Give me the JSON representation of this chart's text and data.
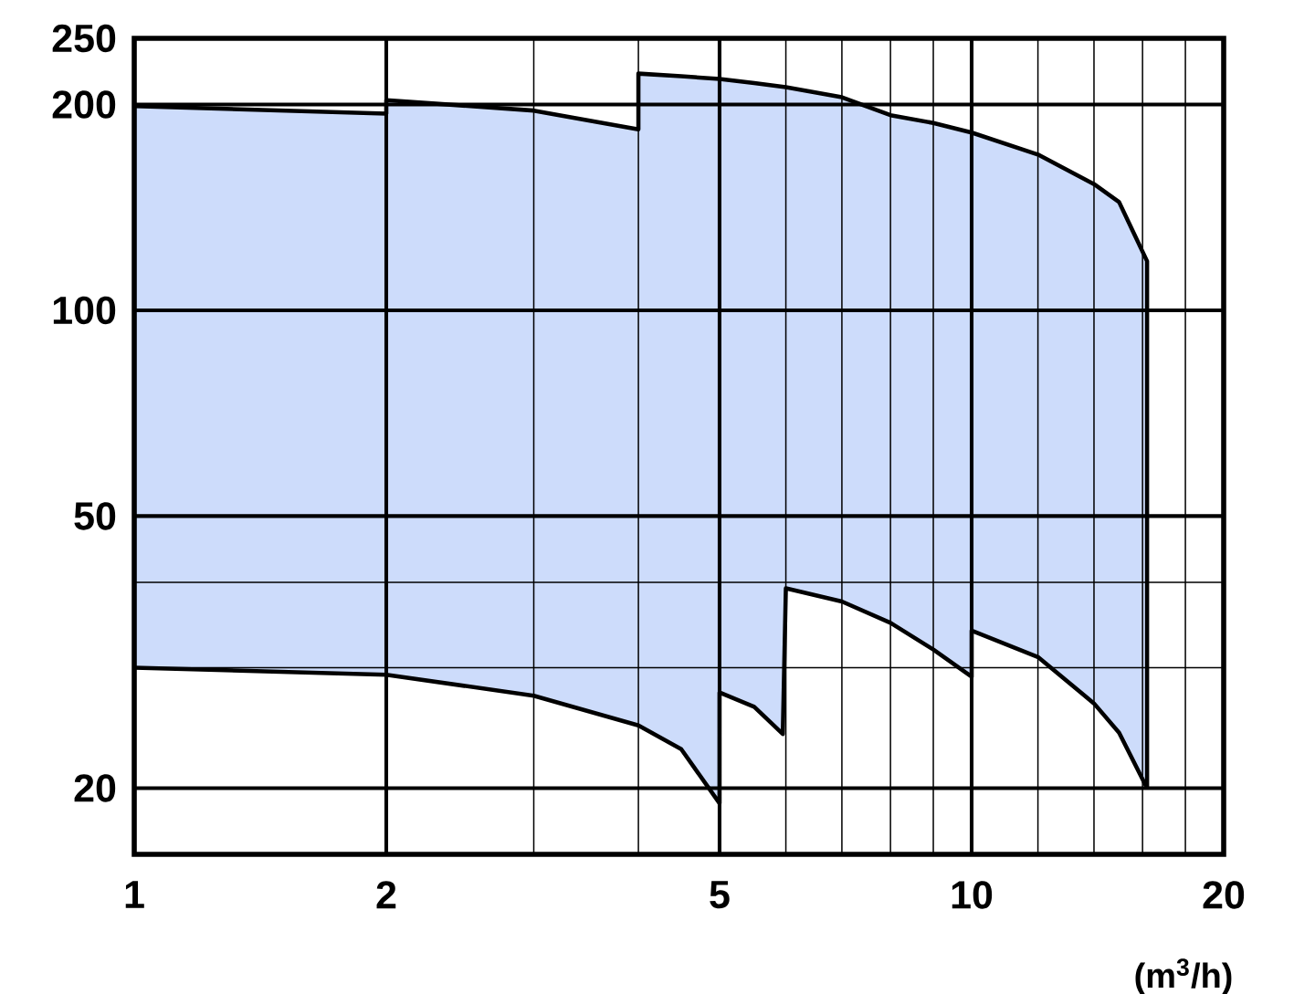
{
  "chart_data": {
    "type": "area",
    "xlabel": "(m$^{3}$/h)",
    "log": "xy",
    "grid": true,
    "marker": "none",
    "xlim": [
      1,
      20
    ],
    "ylim": [
      16,
      250
    ],
    "xticks": [
      1,
      2,
      5,
      10,
      20,
      {
        "value": 3,
        "label": null
      },
      {
        "value": 4,
        "label": null
      },
      {
        "value": 6,
        "label": null
      },
      {
        "value": 7,
        "label": null
      },
      {
        "value": 8,
        "label": null
      },
      {
        "value": 9,
        "label": null
      },
      {
        "value": 12,
        "label": null
      },
      {
        "value": 14,
        "label": null
      },
      {
        "value": 16,
        "label": null
      },
      {
        "value": 18,
        "label": null
      }
    ],
    "yticks": [
      20,
      50,
      100,
      200,
      250,
      {
        "value": 30,
        "label": null
      },
      {
        "value": 40,
        "label": null
      }
    ],
    "series": [
      {
        "color": "#cddcfb",
        "x": [
          1,
          2,
          2,
          3,
          4,
          4,
          4.5,
          5,
          5.5,
          6,
          7,
          8,
          9,
          10,
          12,
          14,
          15,
          16.2,
          16.2
        ],
        "values": [
          199,
          194,
          203,
          196,
          184,
          222,
          220,
          218,
          215,
          212,
          205,
          193,
          188,
          182,
          169,
          153,
          144,
          118,
          20
        ]
      },
      {
        "type": "line",
        "color": "#000000",
        "x": [
          1,
          2,
          3,
          4,
          4.5,
          5,
          5,
          5.5,
          5.95,
          6,
          7,
          8,
          9,
          10,
          10,
          12,
          14,
          15,
          16.2
        ],
        "values": [
          30,
          29.3,
          27.3,
          24.7,
          22.8,
          19,
          27.6,
          26.3,
          24,
          39.2,
          37.5,
          34.9,
          31.9,
          29.1,
          34,
          31.1,
          26.6,
          24.1,
          20
        ]
      }
    ]
  }
}
